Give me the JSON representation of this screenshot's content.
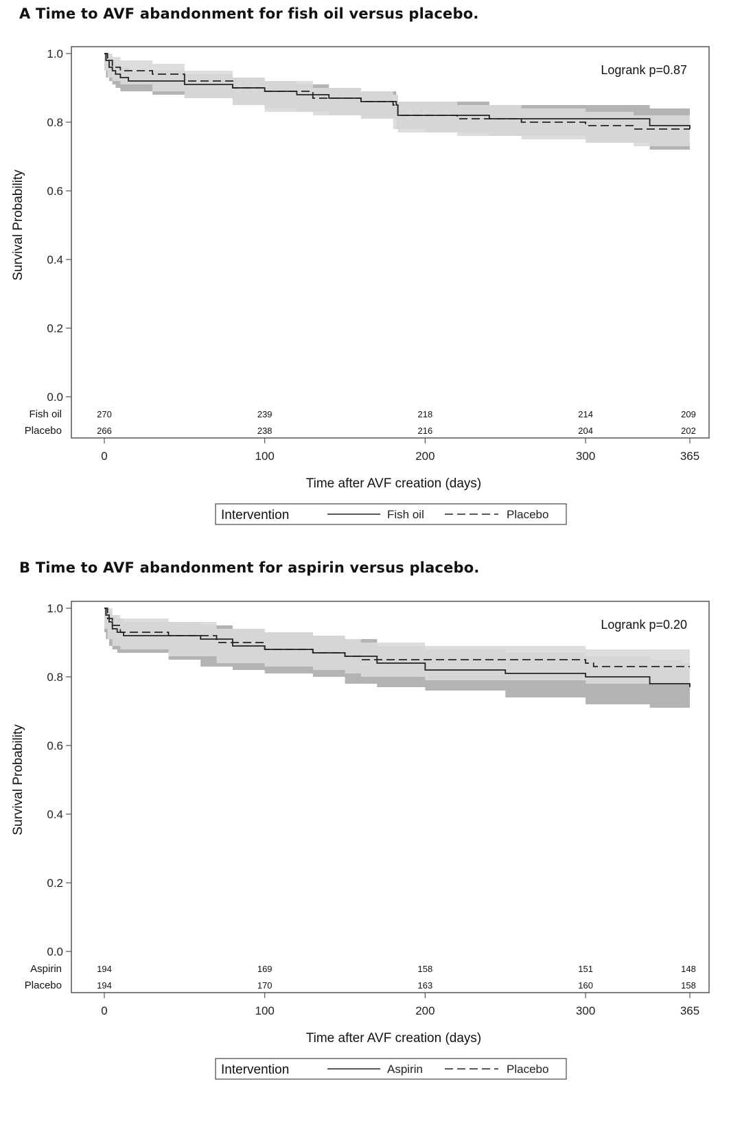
{
  "chart_data": [
    {
      "type": "line",
      "title": "A  Time to AVF abandonment for fish oil versus placebo.",
      "xlabel": "Time after AVF creation (days)",
      "ylabel": "Survival Probability",
      "xlim": [
        0,
        365
      ],
      "ylim": [
        0,
        1
      ],
      "x_ticks": [
        0,
        100,
        200,
        300,
        365
      ],
      "y_ticks": [
        "0.0",
        "0.2",
        "0.4",
        "0.6",
        "0.8",
        "1.0"
      ],
      "annotation": "Logrank p=0.87",
      "legend": {
        "title": "Intervention",
        "position": "bottom-center"
      },
      "series": [
        {
          "name": "Fish oil",
          "style": "solid",
          "x": [
            0,
            1,
            3,
            5,
            7,
            10,
            15,
            30,
            50,
            80,
            100,
            120,
            140,
            160,
            182,
            183,
            200,
            240,
            300,
            340,
            365
          ],
          "y": [
            1.0,
            0.98,
            0.96,
            0.95,
            0.94,
            0.93,
            0.92,
            0.92,
            0.91,
            0.9,
            0.89,
            0.88,
            0.87,
            0.86,
            0.85,
            0.82,
            0.82,
            0.81,
            0.81,
            0.79,
            0.78
          ],
          "ci_lower": [
            0.97,
            0.95,
            0.93,
            0.92,
            0.91,
            0.9,
            0.89,
            0.89,
            0.88,
            0.87,
            0.85,
            0.84,
            0.83,
            0.82,
            0.81,
            0.78,
            0.78,
            0.77,
            0.76,
            0.74,
            0.72
          ],
          "ci_upper": [
            1.0,
            1.0,
            0.99,
            0.98,
            0.97,
            0.96,
            0.95,
            0.95,
            0.94,
            0.93,
            0.92,
            0.91,
            0.9,
            0.89,
            0.88,
            0.86,
            0.86,
            0.85,
            0.85,
            0.84,
            0.83
          ]
        },
        {
          "name": "Placebo",
          "style": "dashed",
          "x": [
            0,
            2,
            5,
            10,
            30,
            50,
            80,
            100,
            130,
            160,
            180,
            183,
            220,
            260,
            300,
            330,
            365
          ],
          "y": [
            1.0,
            0.98,
            0.96,
            0.95,
            0.94,
            0.92,
            0.9,
            0.89,
            0.87,
            0.86,
            0.85,
            0.82,
            0.81,
            0.8,
            0.79,
            0.78,
            0.78
          ],
          "ci_lower": [
            0.98,
            0.95,
            0.93,
            0.92,
            0.91,
            0.89,
            0.87,
            0.85,
            0.83,
            0.82,
            0.81,
            0.78,
            0.77,
            0.76,
            0.75,
            0.74,
            0.73
          ],
          "ci_upper": [
            1.0,
            1.0,
            0.99,
            0.98,
            0.97,
            0.95,
            0.93,
            0.92,
            0.9,
            0.89,
            0.88,
            0.86,
            0.85,
            0.84,
            0.83,
            0.82,
            0.82
          ]
        }
      ],
      "risk_table": {
        "x": [
          0,
          100,
          200,
          300,
          365
        ],
        "rows": [
          {
            "label": "Fish oil",
            "values": [
              "270",
              "239",
              "218",
              "214",
              "209"
            ]
          },
          {
            "label": "Placebo",
            "values": [
              "266",
              "238",
              "216",
              "204",
              "202"
            ]
          }
        ]
      }
    },
    {
      "type": "line",
      "title": "B  Time to AVF abandonment for aspirin versus placebo.",
      "xlabel": "Time after AVF creation (days)",
      "ylabel": "Survival Probability",
      "xlim": [
        0,
        365
      ],
      "ylim": [
        0,
        1
      ],
      "x_ticks": [
        0,
        100,
        200,
        300,
        365
      ],
      "y_ticks": [
        "0.0",
        "0.2",
        "0.4",
        "0.6",
        "0.8",
        "1.0"
      ],
      "annotation": "Logrank p=0.20",
      "legend": {
        "title": "Intervention",
        "position": "bottom-center"
      },
      "series": [
        {
          "name": "Aspirin",
          "style": "solid",
          "x": [
            0,
            1,
            3,
            5,
            8,
            12,
            40,
            60,
            80,
            100,
            130,
            150,
            170,
            200,
            250,
            300,
            340,
            360,
            365
          ],
          "y": [
            1.0,
            0.98,
            0.96,
            0.94,
            0.93,
            0.92,
            0.92,
            0.91,
            0.89,
            0.88,
            0.87,
            0.86,
            0.84,
            0.82,
            0.81,
            0.8,
            0.78,
            0.78,
            0.77
          ],
          "ci_lower": [
            0.96,
            0.93,
            0.91,
            0.89,
            0.88,
            0.87,
            0.87,
            0.85,
            0.83,
            0.82,
            0.81,
            0.8,
            0.78,
            0.77,
            0.76,
            0.74,
            0.72,
            0.71,
            0.71
          ],
          "ci_upper": [
            1.0,
            1.0,
            0.99,
            0.98,
            0.97,
            0.96,
            0.96,
            0.95,
            0.94,
            0.93,
            0.92,
            0.91,
            0.89,
            0.88,
            0.87,
            0.86,
            0.85,
            0.84,
            0.84
          ]
        },
        {
          "name": "Placebo",
          "style": "dashed",
          "x": [
            0,
            2,
            5,
            10,
            40,
            70,
            100,
            130,
            150,
            160,
            200,
            300,
            305,
            365
          ],
          "y": [
            1.0,
            0.97,
            0.95,
            0.93,
            0.92,
            0.9,
            0.88,
            0.87,
            0.86,
            0.85,
            0.85,
            0.84,
            0.83,
            0.83
          ],
          "ci_lower": [
            0.97,
            0.94,
            0.91,
            0.89,
            0.88,
            0.86,
            0.84,
            0.83,
            0.82,
            0.81,
            0.8,
            0.79,
            0.78,
            0.78
          ],
          "ci_upper": [
            1.0,
            1.0,
            0.98,
            0.97,
            0.96,
            0.94,
            0.93,
            0.92,
            0.91,
            0.9,
            0.89,
            0.88,
            0.88,
            0.88
          ]
        }
      ],
      "risk_table": {
        "x": [
          0,
          100,
          200,
          300,
          365
        ],
        "rows": [
          {
            "label": "Aspirin",
            "values": [
              "194",
              "169",
              "158",
              "151",
              "148"
            ]
          },
          {
            "label": "Placebo",
            "values": [
              "194",
              "170",
              "163",
              "160",
              "158"
            ]
          }
        ]
      }
    }
  ],
  "colors": {
    "band_light": "#d9d9d9",
    "band_dark": "#9a9a9a",
    "curve": "#222222",
    "frame": "#555555"
  }
}
